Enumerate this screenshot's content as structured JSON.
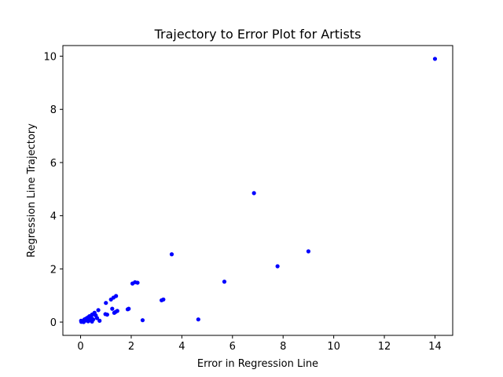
{
  "chart_data": {
    "type": "scatter",
    "title": "Trajectory to Error Plot for Artists",
    "xlabel": "Error in Regression Line",
    "ylabel": "Regression Line Trajectory",
    "xlim": [
      -0.7,
      14.7
    ],
    "ylim": [
      -0.5,
      10.4
    ],
    "xticks": [
      0,
      2,
      4,
      6,
      8,
      10,
      12,
      14
    ],
    "yticks": [
      0,
      2,
      4,
      6,
      8,
      10
    ],
    "grid": false,
    "marker_color": "#0000ff",
    "series": [
      {
        "name": "Artists",
        "x": [
          14.0,
          6.85,
          9.0,
          7.78,
          5.68,
          3.6,
          4.65,
          2.45,
          2.05,
          2.15,
          2.25,
          3.2,
          3.27,
          1.86,
          1.9,
          1.4,
          1.3,
          1.2,
          1.0,
          1.25,
          1.33,
          1.45,
          1.38,
          1.05,
          0.98,
          0.7,
          0.75,
          0.6,
          0.55,
          0.5,
          0.45,
          0.42,
          0.35,
          0.3,
          0.4,
          0.25,
          0.2,
          0.18,
          0.15,
          0.12,
          0.1,
          0.08,
          0.05,
          0.03,
          0.02,
          0.3,
          0.45,
          0.22,
          0.35,
          0.15,
          0.12,
          0.5,
          0.65
        ],
        "y": [
          9.9,
          4.85,
          2.66,
          2.1,
          1.52,
          2.55,
          0.1,
          0.07,
          1.45,
          1.5,
          1.48,
          0.82,
          0.85,
          0.48,
          0.5,
          0.98,
          0.92,
          0.85,
          0.72,
          0.5,
          0.35,
          0.42,
          0.38,
          0.28,
          0.3,
          0.45,
          0.05,
          0.25,
          0.35,
          0.3,
          0.28,
          0.2,
          0.22,
          0.18,
          0.12,
          0.15,
          0.12,
          0.1,
          0.08,
          0.05,
          0.04,
          0.03,
          0.02,
          0.01,
          0.05,
          0.03,
          0.02,
          0.06,
          0.08,
          0.1,
          0.0,
          0.1,
          0.15
        ]
      }
    ]
  }
}
